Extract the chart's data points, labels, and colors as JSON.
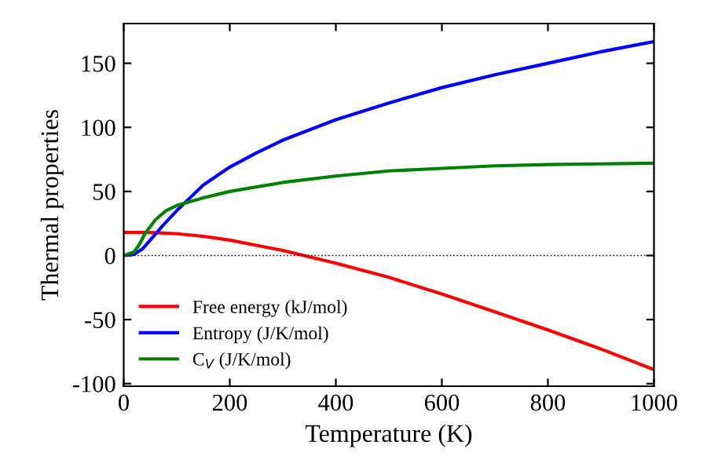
{
  "chart_data": {
    "type": "line",
    "xlabel": "Temperature (K)",
    "ylabel": "Thermal properties",
    "xlim": [
      0,
      1000
    ],
    "xticks": [
      0,
      200,
      400,
      600,
      800,
      1000
    ],
    "ylim": [
      -102,
      181
    ],
    "yticks": [
      -100,
      -50,
      0,
      50,
      100,
      150
    ],
    "grid": false,
    "legend": "bottom left",
    "marker": "none",
    "line_style": "solid",
    "ref_lines": [
      {
        "axis": "y",
        "value": 0,
        "color": "#000000",
        "line_style": "dotted"
      }
    ],
    "series": [
      {
        "name": "Free energy (kJ/mol)",
        "color": "#ff0000",
        "x": [
          0,
          50,
          100,
          150,
          200,
          250,
          300,
          400,
          500,
          600,
          700,
          800,
          900,
          1000
        ],
        "values": [
          18,
          18,
          17,
          15,
          12,
          8,
          4,
          -6,
          -17,
          -30,
          -44,
          -58,
          -73,
          -89
        ]
      },
      {
        "name": "Entropy (J/K/mol)",
        "color": "#0000ff",
        "x": [
          0,
          20,
          35,
          50,
          75,
          100,
          150,
          200,
          250,
          300,
          400,
          500,
          600,
          700,
          800,
          900,
          1000
        ],
        "values": [
          0,
          1,
          5,
          12,
          24,
          35,
          55,
          69,
          80,
          90,
          106,
          119,
          131,
          141,
          150,
          159,
          167
        ]
      },
      {
        "name": "C$_{V}$ (J/K/mol)",
        "color": "#008000",
        "x": [
          0,
          20,
          30,
          40,
          60,
          80,
          100,
          150,
          200,
          300,
          400,
          500,
          600,
          700,
          800,
          900,
          1000
        ],
        "values": [
          0,
          3,
          9,
          17,
          28,
          35,
          39,
          45,
          50,
          57,
          62,
          66,
          68,
          70,
          71,
          71.5,
          72
        ]
      }
    ]
  }
}
